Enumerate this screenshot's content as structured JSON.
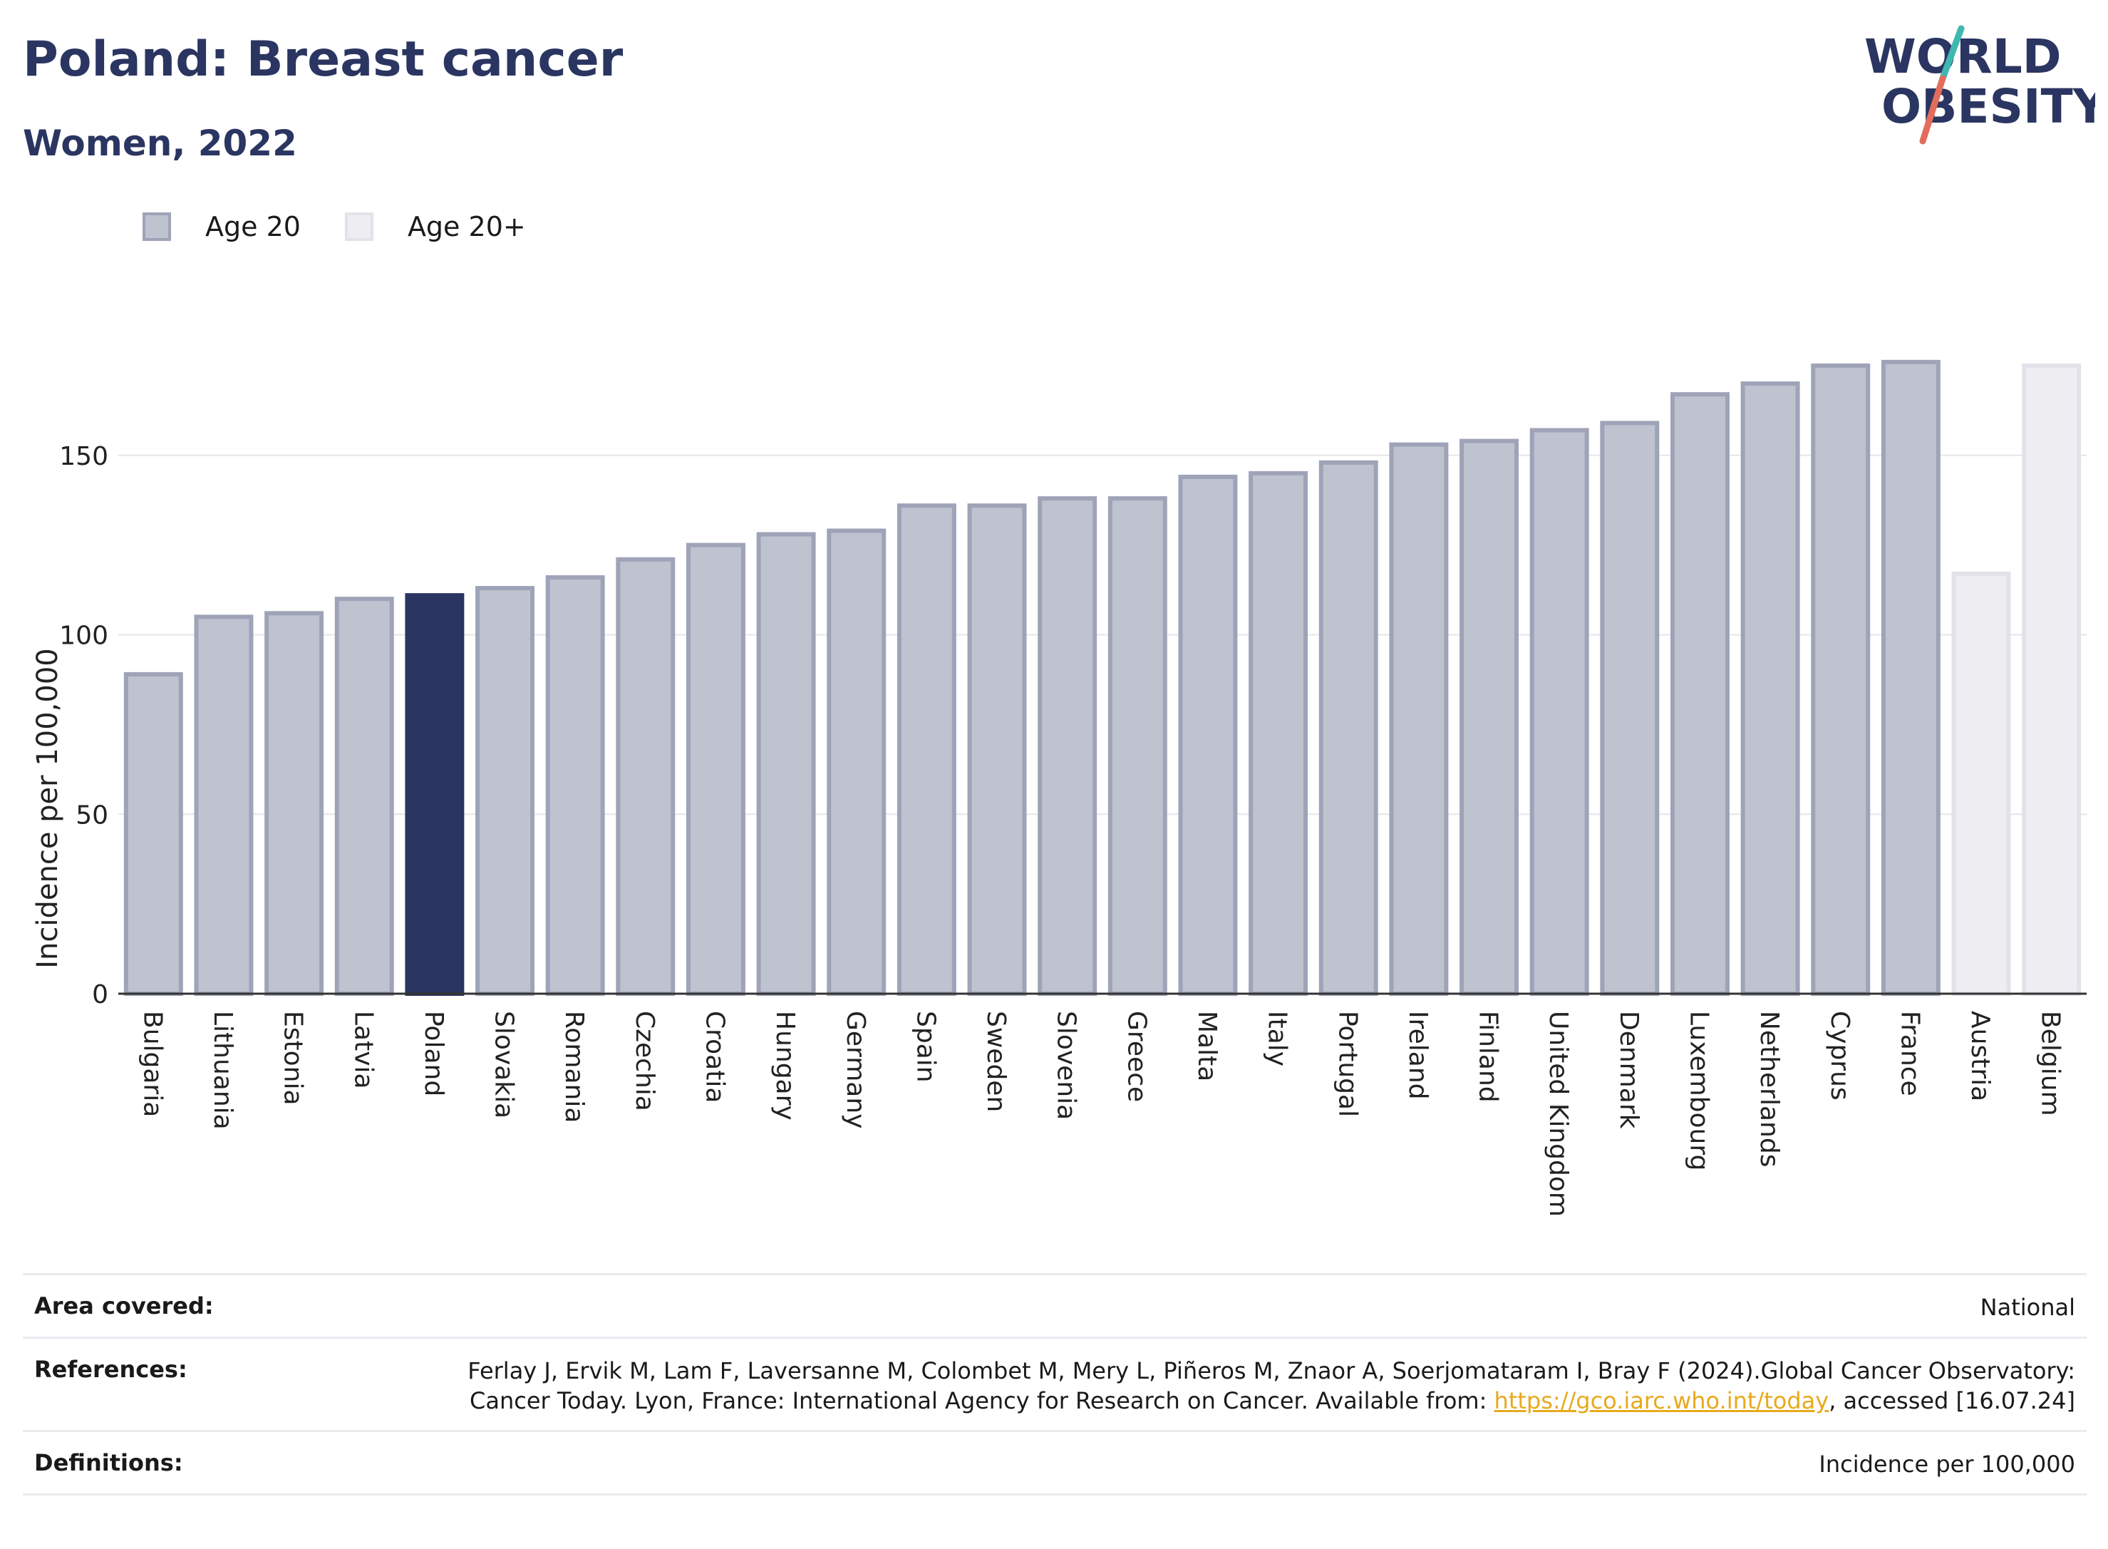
{
  "header": {
    "title": "Poland: Breast cancer",
    "subtitle": "Women, 2022"
  },
  "logo": {
    "line1": "WORLD",
    "line2": "OBESITY",
    "icon": "world-obesity-logo"
  },
  "legend": [
    {
      "label": "Age 20",
      "color": "#bfc2cf"
    },
    {
      "label": "Age 20+",
      "color": "#eeeef2"
    }
  ],
  "chart_data": {
    "type": "bar",
    "ylabel": "Incidence per 100,000",
    "xlabel": "",
    "ylim": [
      0,
      190
    ],
    "yticks": [
      0,
      50,
      100,
      150
    ],
    "grid": true,
    "highlight": "Poland",
    "colors": {
      "age20": "#bfc2cf",
      "age20_border": "#9ea3b8",
      "age20plus": "#eeeef2",
      "age20plus_border": "#e2e3ea",
      "highlight": "#2b3561"
    },
    "categories": [
      "Bulgaria",
      "Lithuania",
      "Estonia",
      "Latvia",
      "Poland",
      "Slovakia",
      "Romania",
      "Czechia",
      "Croatia",
      "Hungary",
      "Germany",
      "Spain",
      "Sweden",
      "Slovenia",
      "Greece",
      "Malta",
      "Italy",
      "Portugal",
      "Ireland",
      "Finland",
      "United Kingdom",
      "Denmark",
      "Luxembourg",
      "Netherlands",
      "Cyprus",
      "France",
      "Austria",
      "Belgium"
    ],
    "values": [
      89,
      105,
      106,
      110,
      111,
      113,
      116,
      121,
      125,
      128,
      129,
      136,
      136,
      138,
      138,
      144,
      145,
      148,
      153,
      154,
      157,
      159,
      167,
      170,
      175,
      176,
      117,
      175
    ],
    "series_membership": [
      "Age 20",
      "Age 20",
      "Age 20",
      "Age 20",
      "Age 20",
      "Age 20",
      "Age 20",
      "Age 20",
      "Age 20",
      "Age 20",
      "Age 20",
      "Age 20",
      "Age 20",
      "Age 20",
      "Age 20",
      "Age 20",
      "Age 20",
      "Age 20",
      "Age 20",
      "Age 20",
      "Age 20",
      "Age 20",
      "Age 20",
      "Age 20",
      "Age 20",
      "Age 20",
      "Age 20+",
      "Age 20+"
    ]
  },
  "info": {
    "area_key": "Area covered:",
    "area_val": "National",
    "refs_key": "References:",
    "refs_text": "Ferlay J, Ervik M, Lam F, Laversanne M, Colombet M, Mery L, Piñeros M, Znaor A, Soerjomataram I, Bray F (2024).Global Cancer Observatory: Cancer Today. Lyon, France: International Agency for Research on Cancer. Available from: ",
    "refs_link": "https://gco.iarc.who.int/today",
    "refs_tail": ", accessed [16.07.24]",
    "defs_key": "Definitions:",
    "defs_val": "Incidence per 100,000"
  }
}
